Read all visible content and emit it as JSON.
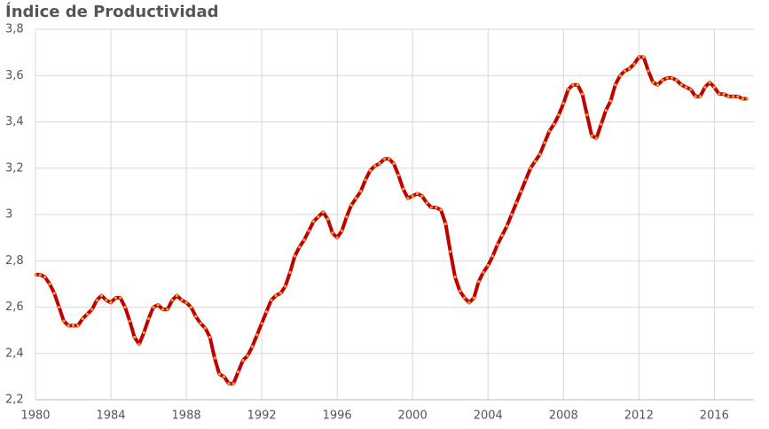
{
  "chart_data": {
    "type": "line",
    "title": "Índice de Productividad",
    "x": [
      1980,
      1980.25,
      1980.5,
      1980.75,
      1981,
      1981.25,
      1981.5,
      1981.75,
      1982,
      1982.25,
      1982.5,
      1982.75,
      1983,
      1983.25,
      1983.5,
      1983.75,
      1984,
      1984.25,
      1984.5,
      1984.75,
      1985,
      1985.25,
      1985.5,
      1985.75,
      1986,
      1986.25,
      1986.5,
      1986.75,
      1987,
      1987.25,
      1987.5,
      1987.75,
      1988,
      1988.25,
      1988.5,
      1988.75,
      1989,
      1989.25,
      1989.5,
      1989.75,
      1990,
      1990.25,
      1990.5,
      1990.75,
      1991,
      1991.25,
      1991.5,
      1991.75,
      1992,
      1992.25,
      1992.5,
      1992.75,
      1993,
      1993.25,
      1993.5,
      1993.75,
      1994,
      1994.25,
      1994.5,
      1994.75,
      1995,
      1995.25,
      1995.5,
      1995.75,
      1996,
      1996.25,
      1996.5,
      1996.75,
      1997,
      1997.25,
      1997.5,
      1997.75,
      1998,
      1998.25,
      1998.5,
      1998.75,
      1999,
      1999.25,
      1999.5,
      1999.75,
      2000,
      2000.25,
      2000.5,
      2000.75,
      2001,
      2001.25,
      2001.5,
      2001.75,
      2002,
      2002.25,
      2002.5,
      2002.75,
      2003,
      2003.25,
      2003.5,
      2003.75,
      2004,
      2004.25,
      2004.5,
      2004.75,
      2005,
      2005.25,
      2005.5,
      2005.75,
      2006,
      2006.25,
      2006.5,
      2006.75,
      2007,
      2007.25,
      2007.5,
      2007.75,
      2008,
      2008.25,
      2008.5,
      2008.75,
      2009,
      2009.25,
      2009.5,
      2009.75,
      2010,
      2010.25,
      2010.5,
      2010.75,
      2011,
      2011.25,
      2011.5,
      2011.75,
      2012,
      2012.25,
      2012.5,
      2012.75,
      2013,
      2013.25,
      2013.5,
      2013.75,
      2014,
      2014.25,
      2014.5,
      2014.75,
      2015,
      2015.25,
      2015.5,
      2015.75,
      2016,
      2016.25,
      2016.5,
      2016.75,
      2017,
      2017.25,
      2017.5,
      2017.75
    ],
    "series": [
      {
        "color": "#c00000",
        "marker_color": "#f5a030",
        "values": [
          2.74,
          2.74,
          2.73,
          2.7,
          2.66,
          2.6,
          2.54,
          2.52,
          2.52,
          2.52,
          2.55,
          2.57,
          2.59,
          2.63,
          2.65,
          2.63,
          2.62,
          2.64,
          2.64,
          2.6,
          2.54,
          2.47,
          2.44,
          2.49,
          2.55,
          2.6,
          2.61,
          2.59,
          2.59,
          2.63,
          2.65,
          2.63,
          2.62,
          2.6,
          2.56,
          2.53,
          2.51,
          2.47,
          2.38,
          2.31,
          2.3,
          2.27,
          2.27,
          2.32,
          2.37,
          2.39,
          2.43,
          2.48,
          2.53,
          2.58,
          2.63,
          2.65,
          2.66,
          2.69,
          2.75,
          2.82,
          2.86,
          2.89,
          2.93,
          2.97,
          2.99,
          3.01,
          2.98,
          2.92,
          2.9,
          2.93,
          2.99,
          3.04,
          3.07,
          3.1,
          3.15,
          3.19,
          3.21,
          3.22,
          3.24,
          3.24,
          3.22,
          3.17,
          3.11,
          3.07,
          3.08,
          3.09,
          3.08,
          3.05,
          3.03,
          3.03,
          3.02,
          2.96,
          2.84,
          2.73,
          2.67,
          2.64,
          2.62,
          2.64,
          2.71,
          2.75,
          2.78,
          2.82,
          2.87,
          2.91,
          2.95,
          3.0,
          3.05,
          3.1,
          3.15,
          3.2,
          3.23,
          3.26,
          3.31,
          3.36,
          3.39,
          3.43,
          3.48,
          3.54,
          3.56,
          3.56,
          3.52,
          3.43,
          3.34,
          3.33,
          3.39,
          3.45,
          3.49,
          3.56,
          3.6,
          3.62,
          3.63,
          3.65,
          3.68,
          3.68,
          3.62,
          3.57,
          3.56,
          3.58,
          3.59,
          3.59,
          3.58,
          3.56,
          3.55,
          3.54,
          3.51,
          3.51,
          3.55,
          3.57,
          3.55,
          3.52,
          3.52,
          3.51,
          3.51,
          3.51,
          3.5,
          3.5
        ]
      }
    ],
    "xlim": [
      1980,
      2018.1
    ],
    "xticks": [
      1980,
      1984,
      1988,
      1992,
      1996,
      2000,
      2004,
      2008,
      2012,
      2016
    ],
    "ylim": [
      2.2,
      3.8
    ],
    "yticks": [
      {
        "value": 2.2,
        "label": "2,2"
      },
      {
        "value": 2.4,
        "label": "2,4"
      },
      {
        "value": 2.6,
        "label": "2,6"
      },
      {
        "value": 2.8,
        "label": "2,8"
      },
      3,
      {
        "value": 3.2,
        "label": "3,2"
      },
      {
        "value": 3.4,
        "label": "3,4"
      },
      {
        "value": 3.6,
        "label": "3,6"
      },
      {
        "value": 3.8,
        "label": "3,8"
      }
    ],
    "grid": true
  }
}
